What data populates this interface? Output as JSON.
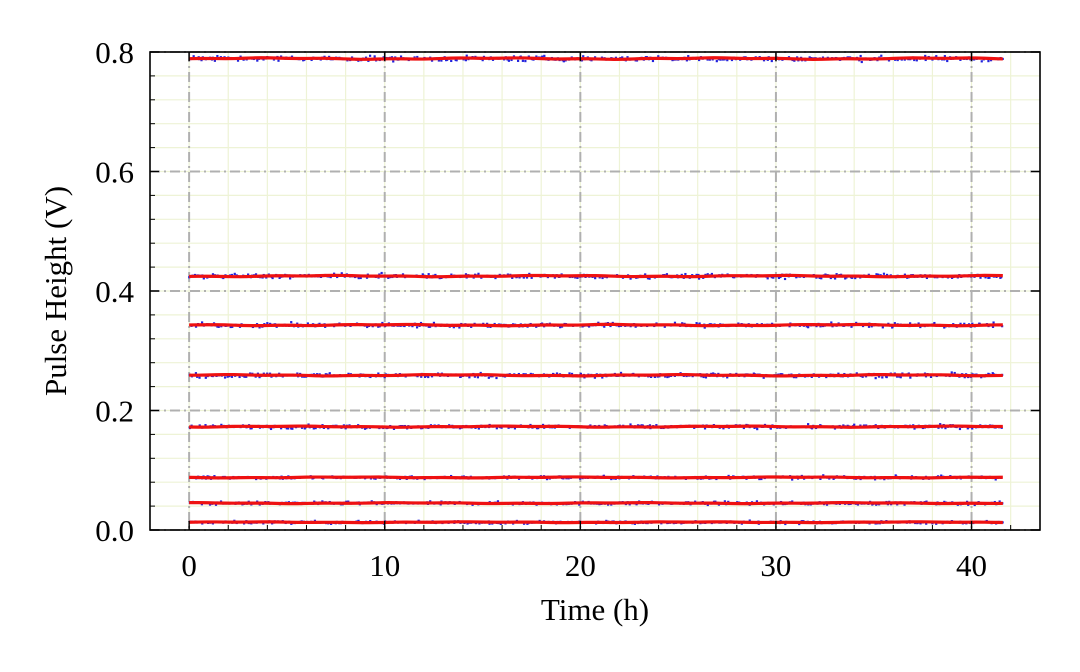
{
  "chart_data": {
    "type": "scatter",
    "xlabel": "Time (h)",
    "ylabel": "Pulse Height (V)",
    "xlim": [
      -2,
      43.5
    ],
    "ylim": [
      0.0,
      0.8
    ],
    "x_ticks": [
      0,
      10,
      20,
      30,
      40
    ],
    "x_tick_labels": [
      "0",
      "10",
      "20",
      "30",
      "40"
    ],
    "x_minor_step": 2,
    "y_ticks": [
      0.0,
      0.2,
      0.4,
      0.6,
      0.8
    ],
    "y_tick_labels": [
      "0.0",
      "0.2",
      "0.4",
      "0.6",
      "0.8"
    ],
    "y_minor_step": 0.04,
    "grid": true,
    "legend": "none",
    "time_range": [
      0,
      41.6
    ],
    "series": [
      {
        "level": 0.013,
        "noise": 0.0022
      },
      {
        "level": 0.045,
        "noise": 0.0025
      },
      {
        "level": 0.088,
        "noise": 0.0025
      },
      {
        "level": 0.173,
        "noise": 0.003
      },
      {
        "level": 0.259,
        "noise": 0.0035
      },
      {
        "level": 0.343,
        "noise": 0.0035
      },
      {
        "level": 0.425,
        "noise": 0.0035
      },
      {
        "level": 0.789,
        "noise": 0.004
      }
    ],
    "colors": {
      "points": "#2222dd",
      "trend": "#ee1111",
      "major_grid": "#b0b0b0",
      "minor_grid": "#eef3d6",
      "axis": "#000000"
    }
  }
}
